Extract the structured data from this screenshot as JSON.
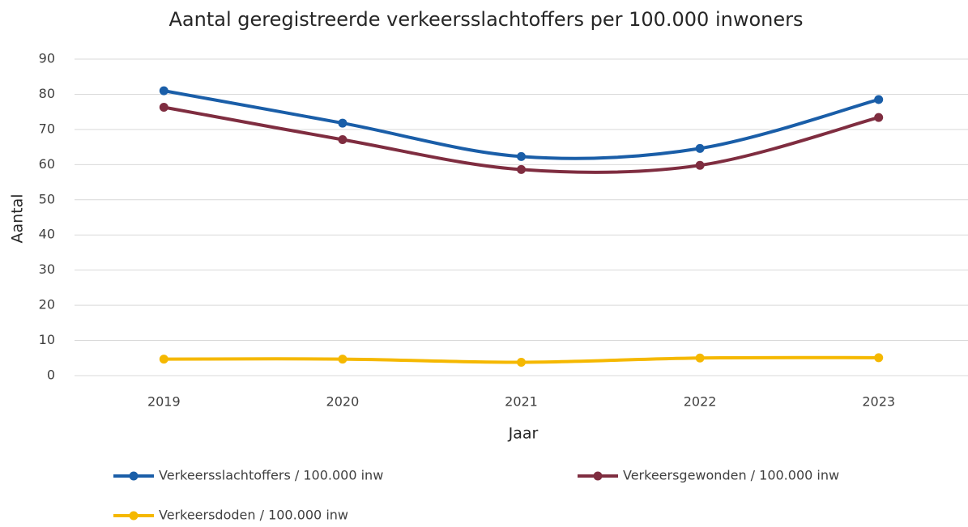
{
  "chart_data": {
    "type": "line",
    "title": "Aantal geregistreerde verkeersslachtoffers per 100.000 inwoners",
    "x_label": "Jaar",
    "y_label": "Aantal",
    "categories": [
      "2019",
      "2020",
      "2021",
      "2022",
      "2023"
    ],
    "series": [
      {
        "name": "Verkeersslachtoffers / 100.000 inw",
        "color": "#1a5ea8",
        "values": [
          81,
          71.8,
          62.3,
          64.6,
          78.5
        ]
      },
      {
        "name": "Verkeersgewonden / 100.000 inw",
        "color": "#7f2d40",
        "values": [
          76.3,
          67.1,
          58.6,
          59.8,
          73.4
        ]
      },
      {
        "name": "Verkeersdoden / 100.000 inw",
        "color": "#f5b800",
        "values": [
          4.7,
          4.7,
          3.8,
          5.0,
          5.1
        ]
      }
    ],
    "ylim": [
      0,
      90
    ],
    "yticks": [
      0,
      10,
      20,
      30,
      40,
      50,
      60,
      70,
      80,
      90
    ],
    "grid": true,
    "smooth": true,
    "legend": "bottom"
  }
}
